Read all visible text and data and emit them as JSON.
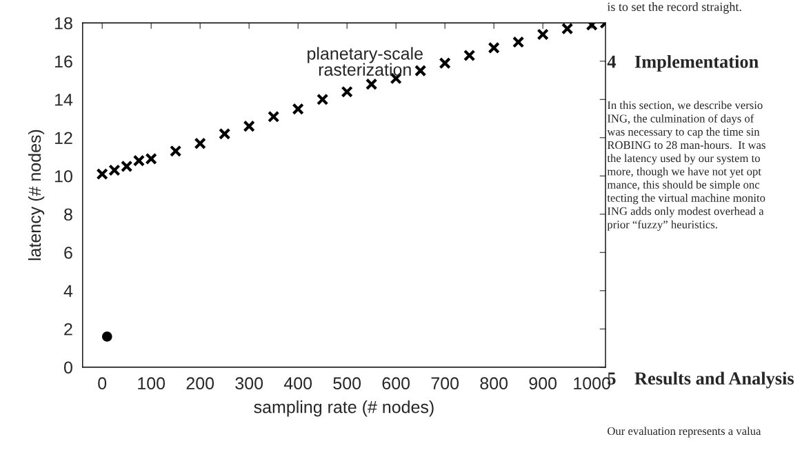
{
  "chart_data": {
    "type": "scatter",
    "xlabel": "sampling rate (# nodes)",
    "ylabel": "latency (# nodes)",
    "xlim": [
      -40,
      1028
    ],
    "ylim": [
      0,
      18
    ],
    "xticks": [
      0,
      100,
      200,
      300,
      400,
      500,
      600,
      700,
      800,
      900,
      1000
    ],
    "yticks": [
      0,
      2,
      4,
      6,
      8,
      10,
      12,
      14,
      16,
      18
    ],
    "grid": false,
    "series": [
      {
        "color": "#000000",
        "marker": "cross",
        "x": [
          0,
          25,
          50,
          75,
          100,
          150,
          200,
          250,
          300,
          350,
          400,
          450,
          500,
          550,
          600,
          650,
          700,
          750,
          800,
          850,
          900,
          950,
          1000,
          1028
        ],
        "values": [
          10.1,
          10.3,
          10.5,
          10.8,
          10.9,
          11.3,
          11.7,
          12.2,
          12.6,
          13.1,
          13.5,
          14.0,
          14.4,
          14.8,
          15.1,
          15.5,
          15.9,
          16.3,
          16.7,
          17.0,
          17.4,
          17.7,
          17.9,
          18.0
        ]
      },
      {
        "color": "#000000",
        "marker": "circle",
        "x": [
          10
        ],
        "values": [
          1.6
        ]
      }
    ],
    "annotations": [
      "planetary-scale\nrasterization",
      "is to set the record straight.",
      "4    Implementation",
      "In this section, we describe versio\nING, the culmination of days of\nwas necessary to cap the time sin\nROBING to 28 man-hours.  It was\nthe latency used by our system to\nmore, though we have not yet opt\nmance, this should be simple onc\ntecting the virtual machine monito\nING adds only modest overhead a\nprior “fuzzy” heuristics.",
      "5    Results and Analysis",
      "Our evaluation represents a valua"
    ]
  }
}
